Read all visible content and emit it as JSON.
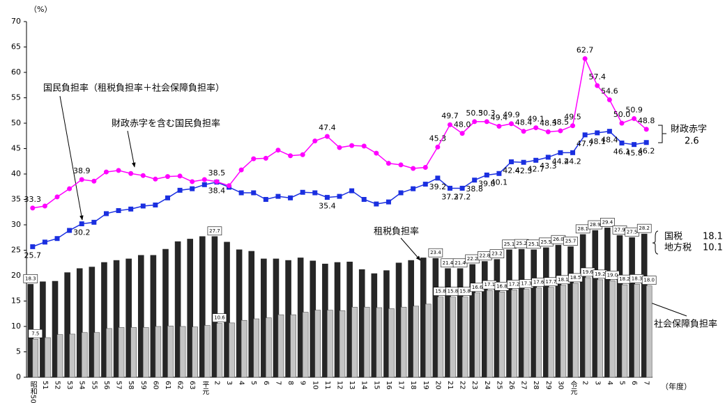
{
  "chart_data": {
    "type": "combo",
    "y_unit": "（%）",
    "x_unit": "（年度）",
    "categories": [
      "昭和50",
      "51",
      "52",
      "53",
      "54",
      "55",
      "56",
      "57",
      "58",
      "59",
      "60",
      "61",
      "62",
      "63",
      "平元",
      "2",
      "3",
      "4",
      "5",
      "6",
      "7",
      "8",
      "9",
      "10",
      "11",
      "12",
      "13",
      "14",
      "15",
      "16",
      "17",
      "18",
      "19",
      "20",
      "21",
      "22",
      "23",
      "24",
      "25",
      "26",
      "27",
      "28",
      "29",
      "30",
      "令元",
      "2",
      "3",
      "4",
      "5",
      "6",
      "7"
    ],
    "ylim": [
      0,
      70
    ],
    "yticks": [
      0,
      5,
      10,
      15,
      20,
      25,
      30,
      35,
      40,
      45,
      50,
      55,
      60,
      65,
      70
    ],
    "series": [
      {
        "name": "租税負担率",
        "type": "bar",
        "color": "#262626",
        "values": [
          18.3,
          18.8,
          18.9,
          20.6,
          21.4,
          21.7,
          22.6,
          23.0,
          23.3,
          24.0,
          24.0,
          25.2,
          26.7,
          27.2,
          27.7,
          27.7,
          26.6,
          25.1,
          24.8,
          23.3,
          23.3,
          23.0,
          23.5,
          22.9,
          22.3,
          22.6,
          22.7,
          21.2,
          20.4,
          21.0,
          22.5,
          23.0,
          23.5,
          23.4,
          21.4,
          21.4,
          22.2,
          22.8,
          23.2,
          25.1,
          25.2,
          25.1,
          25.5,
          26.0,
          25.7,
          28.1,
          28.9,
          29.4,
          27.9,
          27.5,
          28.2
        ],
        "value_labels": [
          "18.3",
          null,
          null,
          null,
          null,
          null,
          null,
          null,
          null,
          null,
          null,
          null,
          null,
          null,
          null,
          "27.7",
          null,
          null,
          null,
          null,
          null,
          null,
          null,
          null,
          null,
          null,
          null,
          null,
          null,
          null,
          null,
          null,
          null,
          "23.4",
          "21.4",
          "21.4",
          "22.2",
          "22.8",
          "23.2",
          "25.1",
          "25.2",
          "25.1",
          "25.5",
          "26.0",
          "25.7",
          "28.1",
          "28.9",
          "29.4",
          "27.9",
          "27.5",
          "28.2"
        ]
      },
      {
        "name": "社会保障負担率",
        "type": "bar",
        "color": "#c4c4c4",
        "values": [
          7.5,
          7.8,
          8.4,
          8.5,
          8.8,
          8.8,
          9.6,
          9.8,
          9.8,
          9.8,
          10.0,
          10.1,
          10.0,
          9.9,
          10.2,
          10.6,
          10.7,
          11.2,
          11.5,
          11.7,
          12.3,
          12.3,
          12.8,
          13.2,
          13.2,
          13.1,
          13.8,
          13.8,
          13.7,
          13.5,
          13.8,
          14.0,
          14.4,
          15.8,
          15.8,
          15.8,
          16.6,
          17.1,
          16.8,
          17.2,
          17.3,
          17.6,
          17.7,
          18.1,
          18.5,
          19.6,
          19.2,
          19.0,
          18.2,
          18.3,
          18.0
        ],
        "value_labels": [
          "7.5",
          null,
          null,
          null,
          null,
          null,
          null,
          null,
          null,
          null,
          null,
          null,
          null,
          null,
          null,
          "10.6",
          null,
          null,
          null,
          null,
          null,
          null,
          null,
          null,
          null,
          null,
          null,
          null,
          null,
          null,
          null,
          null,
          null,
          "15.8",
          "15.8",
          "15.8",
          "16.6",
          "17.1",
          "16.8",
          "17.2",
          "17.3",
          "17.6",
          "17.7",
          "18.1",
          "18.5",
          "19.6",
          "19.2",
          "19.0",
          "18.2",
          "18.3",
          "18.0"
        ]
      },
      {
        "name": "国民負担率（租税負担率＋社会保障負担率）",
        "type": "line",
        "marker": "square",
        "color": "#1a2fe0",
        "values": [
          25.7,
          26.6,
          27.3,
          28.9,
          30.2,
          30.5,
          32.2,
          32.8,
          33.1,
          33.7,
          33.9,
          35.3,
          36.8,
          37.1,
          37.9,
          38.4,
          37.4,
          36.3,
          36.3,
          35.0,
          35.6,
          35.3,
          36.4,
          36.3,
          35.4,
          35.6,
          36.7,
          35.0,
          34.1,
          34.5,
          36.3,
          37.1,
          38.0,
          39.2,
          37.2,
          37.2,
          38.8,
          39.8,
          40.1,
          42.4,
          42.3,
          42.7,
          43.3,
          44.2,
          44.2,
          47.7,
          48.1,
          48.4,
          46.1,
          45.8,
          46.2
        ],
        "value_labels": [
          "25.7",
          null,
          null,
          null,
          "30.2",
          null,
          null,
          null,
          null,
          null,
          null,
          null,
          null,
          null,
          null,
          "38.4",
          null,
          null,
          null,
          null,
          null,
          null,
          null,
          null,
          "35.4",
          null,
          null,
          null,
          null,
          null,
          null,
          null,
          null,
          "39.2",
          "37.2",
          "37.2",
          "38.8",
          "39.8",
          "40.1",
          "42.4",
          "42.3",
          "42.7",
          "43.3",
          "44.2",
          "44.2",
          "47.7",
          "48.1",
          "48.4",
          "46.1",
          "45.8",
          "46.2"
        ]
      },
      {
        "name": "財政赤字を含む国民負担率",
        "type": "line",
        "marker": "circle",
        "color": "#ff00ff",
        "values": [
          33.3,
          33.7,
          35.5,
          37.1,
          38.9,
          38.6,
          40.4,
          40.7,
          40.1,
          39.7,
          39.0,
          39.5,
          39.6,
          38.5,
          38.9,
          38.5,
          37.7,
          40.8,
          43.0,
          43.1,
          44.7,
          43.6,
          43.8,
          46.5,
          47.4,
          45.2,
          45.6,
          45.5,
          44.1,
          42.1,
          41.8,
          41.1,
          41.3,
          45.3,
          49.7,
          48.0,
          50.3,
          50.3,
          49.4,
          49.9,
          48.4,
          49.1,
          48.3,
          48.5,
          49.5,
          62.7,
          57.4,
          54.6,
          50.0,
          50.9,
          48.8
        ],
        "value_labels": [
          "33.3",
          null,
          null,
          null,
          "38.9",
          null,
          null,
          null,
          null,
          null,
          null,
          null,
          null,
          null,
          null,
          "38.5",
          null,
          null,
          null,
          null,
          null,
          null,
          null,
          null,
          "47.4",
          null,
          null,
          null,
          null,
          null,
          null,
          null,
          null,
          "45.3",
          "49.7",
          "48.0",
          "50.3",
          "50.3",
          "49.4",
          "49.9",
          "48.4",
          "49.1",
          "48.3",
          "48.5",
          "49.5",
          "62.7",
          "57.4",
          "54.6",
          "50.0",
          "50.9",
          "48.8"
        ]
      }
    ],
    "deficit": {
      "label": "財政赤字",
      "value": 2.6
    },
    "tax_breakdown": [
      {
        "label": "国税",
        "value": 18.1
      },
      {
        "label": "地方税",
        "value": 10.1
      }
    ]
  }
}
